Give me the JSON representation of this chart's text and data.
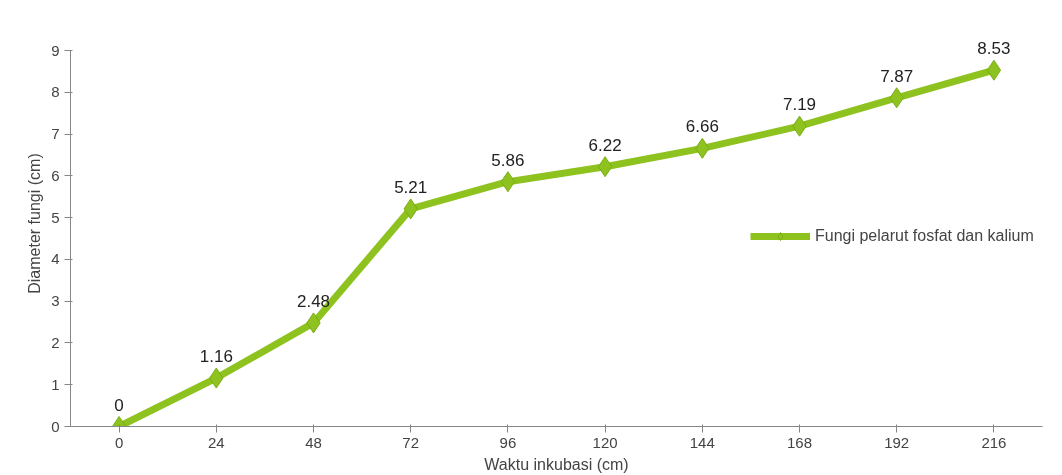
{
  "chart_data": {
    "type": "line",
    "xlabel": "Waktu inkubasi (cm)",
    "ylabel": "Diameter fungi (cm)",
    "categories": [
      "0",
      "24",
      "48",
      "72",
      "96",
      "120",
      "144",
      "168",
      "192",
      "216"
    ],
    "series": [
      {
        "name": "Fungi pelarut fosfat dan kalium",
        "color": "#8dc21f",
        "values": [
          0,
          1.16,
          2.48,
          5.21,
          5.86,
          6.22,
          6.66,
          7.19,
          7.87,
          8.53
        ]
      }
    ],
    "ylim": [
      0,
      9
    ],
    "yticks": [
      0,
      1,
      2,
      3,
      4,
      5,
      6,
      7,
      8,
      9
    ],
    "grid": false,
    "legend": "right",
    "marker": "diamond",
    "line_style": "solid",
    "data_labels": true
  }
}
